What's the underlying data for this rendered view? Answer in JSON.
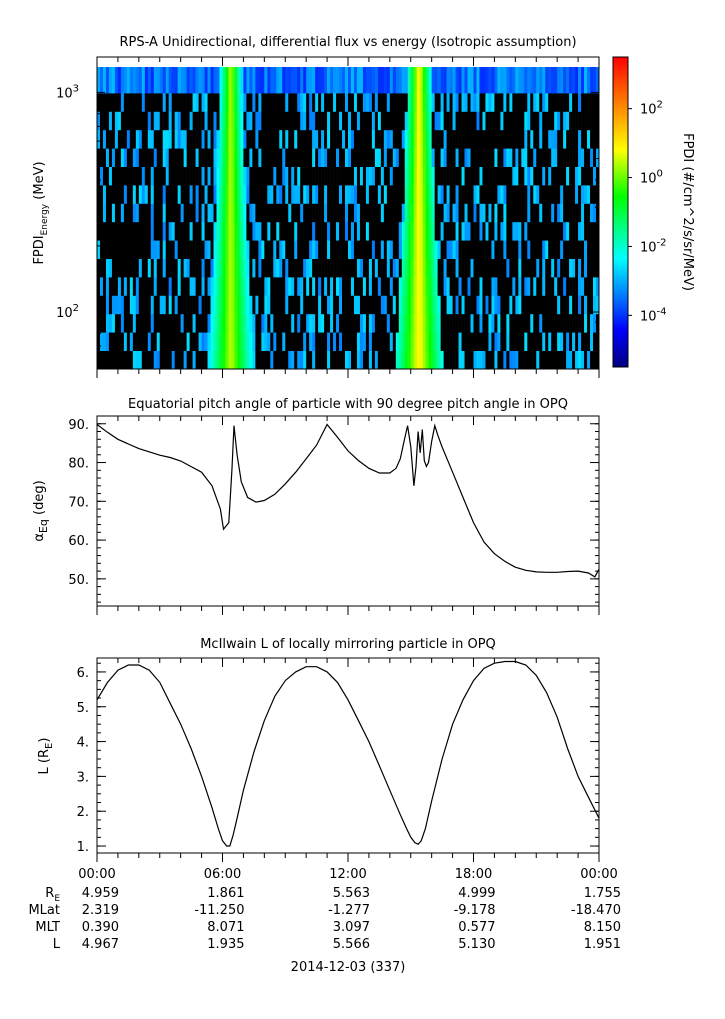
{
  "chart_data": [
    {
      "type": "heatmap",
      "title": "RPS-A Unidirectional, differential flux vs energy (Isotropic assumption)",
      "ylabel_main": "FPDI",
      "ylabel_sub": "Energy",
      "ylabel_unit": "(MeV)",
      "yscale": "log",
      "ylim": [
        55,
        1450
      ],
      "yticks": [
        {
          "value": 100,
          "base": "10",
          "exp": "2"
        },
        {
          "value": 1000,
          "base": "10",
          "exp": "3"
        }
      ],
      "colorbar": {
        "label": "FPDI (#/cm^2/s/sr/MeV)",
        "scale": "log",
        "range": [
          -5.5,
          3.5
        ],
        "ticks": [
          {
            "value": 2,
            "base": "10",
            "exp": "2"
          },
          {
            "value": 0,
            "base": "10",
            "exp": "0"
          },
          {
            "value": -2,
            "base": "10",
            "exp": "-2"
          },
          {
            "value": -4,
            "base": "10",
            "exp": "-4"
          }
        ]
      },
      "enhancements": [
        {
          "center_hour": 6.4,
          "log10_flux_peak": 0.5
        },
        {
          "center_hour": 15.4,
          "log10_flux_peak": 1.0
        }
      ],
      "background_log10_flux": -3.0,
      "top_energy_row_log10_flux": -3.5
    },
    {
      "type": "line",
      "title": "Equatorial pitch angle of particle with 90 degree pitch angle in OPQ",
      "ylabel_main": "α",
      "ylabel_sub": "Eq",
      "ylabel_unit": "(deg)",
      "ylim": [
        43,
        92
      ],
      "yticks": [
        "50.",
        "60.",
        "70.",
        "80.",
        "90."
      ],
      "x": [
        0.0,
        0.5,
        1.0,
        2.0,
        3.0,
        3.5,
        4.0,
        5.0,
        5.5,
        5.9,
        6.05,
        6.3,
        6.45,
        6.55,
        6.7,
        6.9,
        7.2,
        7.6,
        8.0,
        8.5,
        9.0,
        9.5,
        10.0,
        10.5,
        11.0,
        11.5,
        12.0,
        12.5,
        13.0,
        13.5,
        14.0,
        14.3,
        14.5,
        14.7,
        14.85,
        15.0,
        15.15,
        15.25,
        15.35,
        15.45,
        15.55,
        15.65,
        15.75,
        15.85,
        16.0,
        16.15,
        16.3,
        16.5,
        17.0,
        17.5,
        18.0,
        18.5,
        19.0,
        19.5,
        20.0,
        20.5,
        21.0,
        21.5,
        22.0,
        22.5,
        23.0,
        23.5,
        23.8,
        24.0
      ],
      "y": [
        89.8,
        87.8,
        86.0,
        83.6,
        81.9,
        81.3,
        80.4,
        77.5,
        74.0,
        68.0,
        62.8,
        64.5,
        78.0,
        89.5,
        82.0,
        75.0,
        71.0,
        69.8,
        70.2,
        71.8,
        74.5,
        77.5,
        81.0,
        84.5,
        89.8,
        86.5,
        83.0,
        80.5,
        78.5,
        77.3,
        77.3,
        78.5,
        81.0,
        86.0,
        89.5,
        84.0,
        74.0,
        79.0,
        88.0,
        82.5,
        88.5,
        80.5,
        79.0,
        80.0,
        85.5,
        89.5,
        87.0,
        84.0,
        77.5,
        71.0,
        64.5,
        59.5,
        56.5,
        54.5,
        53.0,
        52.2,
        51.8,
        51.7,
        51.7,
        51.9,
        52.0,
        51.5,
        50.5,
        52.5
      ]
    },
    {
      "type": "line",
      "title": "McIlwain L of locally mirroring particle in OPQ",
      "ylabel_main": "L (R",
      "ylabel_sub": "E",
      "ylabel_unit": ")",
      "ylim": [
        0.8,
        6.4
      ],
      "yticks": [
        "1.",
        "2.",
        "3.",
        "4.",
        "5.",
        "6."
      ],
      "x": [
        0.0,
        0.5,
        1.0,
        1.5,
        2.0,
        2.5,
        3.0,
        3.5,
        4.0,
        4.5,
        5.0,
        5.5,
        5.8,
        6.0,
        6.2,
        6.35,
        6.5,
        6.7,
        7.0,
        7.5,
        8.0,
        8.5,
        9.0,
        9.5,
        10.0,
        10.5,
        11.0,
        11.5,
        12.0,
        12.5,
        13.0,
        13.5,
        14.0,
        14.5,
        14.8,
        15.0,
        15.2,
        15.35,
        15.5,
        15.7,
        16.0,
        16.5,
        17.0,
        17.5,
        18.0,
        18.5,
        19.0,
        19.5,
        20.0,
        20.5,
        21.0,
        21.5,
        22.0,
        22.5,
        23.0,
        23.5,
        24.0
      ],
      "y": [
        5.2,
        5.7,
        6.05,
        6.2,
        6.2,
        6.05,
        5.7,
        5.1,
        4.5,
        3.8,
        3.0,
        2.1,
        1.5,
        1.15,
        1.0,
        1.0,
        1.3,
        1.8,
        2.6,
        3.7,
        4.6,
        5.3,
        5.75,
        6.0,
        6.15,
        6.15,
        6.0,
        5.7,
        5.2,
        4.6,
        4.0,
        3.3,
        2.6,
        1.9,
        1.5,
        1.25,
        1.1,
        1.05,
        1.15,
        1.5,
        2.3,
        3.5,
        4.5,
        5.2,
        5.75,
        6.1,
        6.25,
        6.3,
        6.3,
        6.2,
        5.9,
        5.4,
        4.7,
        3.8,
        3.0,
        2.4,
        1.8
      ]
    }
  ],
  "x_axis": {
    "xlim": [
      0,
      24
    ],
    "major_hours": [
      0,
      6,
      12,
      18,
      24
    ],
    "minor_step_hours": 1,
    "tick_labels": [
      "00:00",
      "06:00",
      "12:00",
      "18:00",
      "00:00"
    ],
    "date_label": "2014-12-03 (337)"
  },
  "ephemeris": {
    "rows": [
      {
        "label_main": "R",
        "label_sub": "E",
        "values": [
          "4.959",
          "1.861",
          "5.563",
          "4.999",
          "1.755"
        ]
      },
      {
        "label_main": "MLat",
        "label_sub": "",
        "values": [
          "2.319",
          "-11.250",
          "-1.277",
          "-9.178",
          "-18.470"
        ]
      },
      {
        "label_main": "MLT",
        "label_sub": "",
        "values": [
          "0.390",
          "8.071",
          "3.097",
          "0.577",
          "8.150"
        ]
      },
      {
        "label_main": "L",
        "label_sub": "",
        "values": [
          "4.967",
          "1.935",
          "5.566",
          "5.130",
          "1.951"
        ]
      }
    ]
  }
}
